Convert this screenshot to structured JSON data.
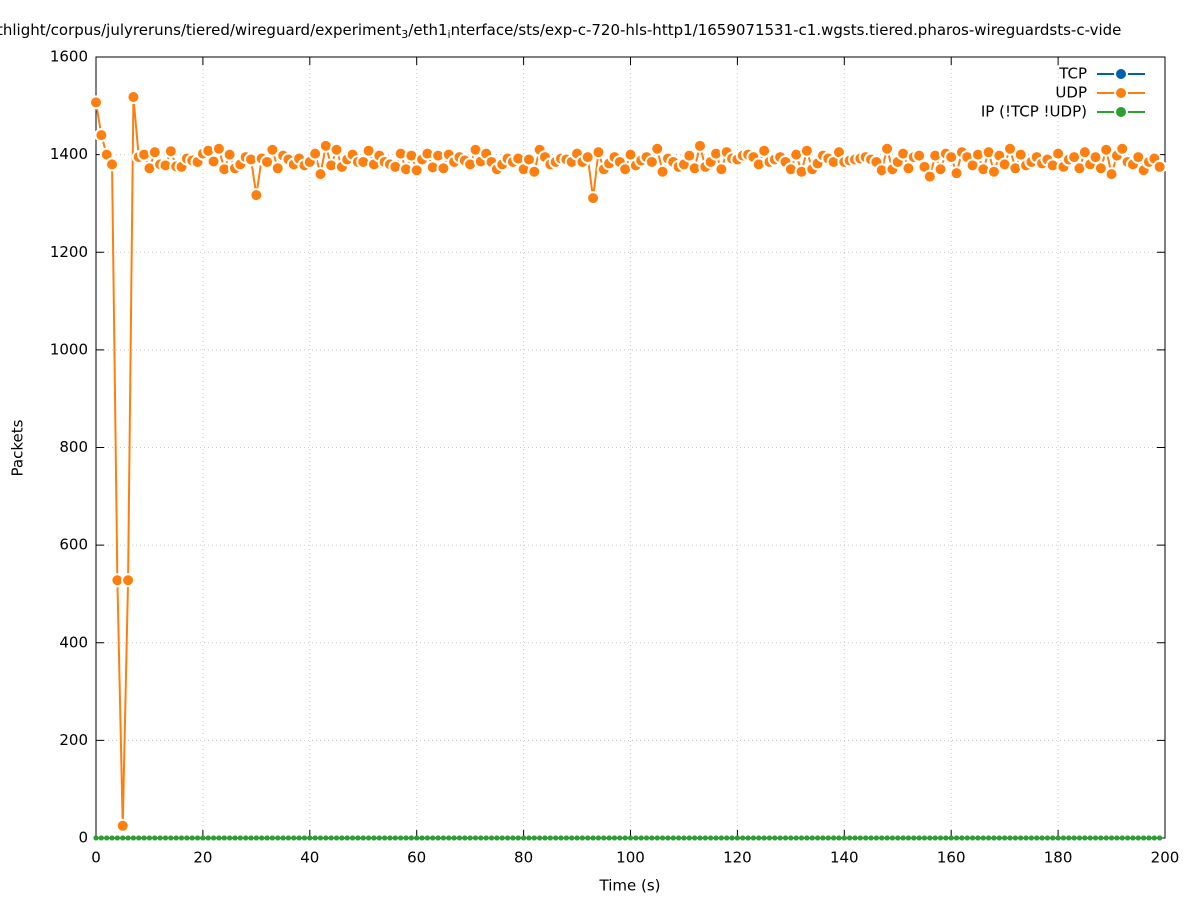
{
  "chart_data": {
    "type": "line",
    "title_parts": [
      "thlight/corpus/julyreruns/tiered/wireguard/experiment",
      "3",
      "/eth1",
      "i",
      "nterface/sts/exp-c-720-hls-http1/1659071531-c1.wgsts.tiered.pharos-wireguardsts-c-vide"
    ],
    "xlabel": "Time (s)",
    "ylabel": "Packets",
    "x": [
      0,
      1,
      2,
      3,
      4,
      5,
      6,
      7,
      8,
      9,
      10,
      11,
      12,
      13,
      14,
      15,
      16,
      17,
      18,
      19,
      20,
      21,
      22,
      23,
      24,
      25,
      26,
      27,
      28,
      29,
      30,
      31,
      32,
      33,
      34,
      35,
      36,
      37,
      38,
      39,
      40,
      41,
      42,
      43,
      44,
      45,
      46,
      47,
      48,
      49,
      50,
      51,
      52,
      53,
      54,
      55,
      56,
      57,
      58,
      59,
      60,
      61,
      62,
      63,
      64,
      65,
      66,
      67,
      68,
      69,
      70,
      71,
      72,
      73,
      74,
      75,
      76,
      77,
      78,
      79,
      80,
      81,
      82,
      83,
      84,
      85,
      86,
      87,
      88,
      89,
      90,
      91,
      92,
      93,
      94,
      95,
      96,
      97,
      98,
      99,
      100,
      101,
      102,
      103,
      104,
      105,
      106,
      107,
      108,
      109,
      110,
      111,
      112,
      113,
      114,
      115,
      116,
      117,
      118,
      119,
      120,
      121,
      122,
      123,
      124,
      125,
      126,
      127,
      128,
      129,
      130,
      131,
      132,
      133,
      134,
      135,
      136,
      137,
      138,
      139,
      140,
      141,
      142,
      143,
      144,
      145,
      146,
      147,
      148,
      149,
      150,
      151,
      152,
      153,
      154,
      155,
      156,
      157,
      158,
      159,
      160,
      161,
      162,
      163,
      164,
      165,
      166,
      167,
      168,
      169,
      170,
      171,
      172,
      173,
      174,
      175,
      176,
      177,
      178,
      179,
      180,
      181,
      182,
      183,
      184,
      185,
      186,
      187,
      188,
      189,
      190,
      191,
      192,
      193,
      194,
      195,
      196,
      197,
      198,
      199
    ],
    "series": [
      {
        "name": "TCP",
        "color": "#0060ad",
        "values": [
          0,
          0,
          0,
          0,
          0,
          0,
          0,
          0,
          0,
          0,
          0,
          0,
          0,
          0,
          0,
          0,
          0,
          0,
          0,
          0,
          0,
          0,
          0,
          0,
          0,
          0,
          0,
          0,
          0,
          0,
          0,
          0,
          0,
          0,
          0,
          0,
          0,
          0,
          0,
          0,
          0,
          0,
          0,
          0,
          0,
          0,
          0,
          0,
          0,
          0,
          0,
          0,
          0,
          0,
          0,
          0,
          0,
          0,
          0,
          0,
          0,
          0,
          0,
          0,
          0,
          0,
          0,
          0,
          0,
          0,
          0,
          0,
          0,
          0,
          0,
          0,
          0,
          0,
          0,
          0,
          0,
          0,
          0,
          0,
          0,
          0,
          0,
          0,
          0,
          0,
          0,
          0,
          0,
          0,
          0,
          0,
          0,
          0,
          0,
          0,
          0,
          0,
          0,
          0,
          0,
          0,
          0,
          0,
          0,
          0,
          0,
          0,
          0,
          0,
          0,
          0,
          0,
          0,
          0,
          0,
          0,
          0,
          0,
          0,
          0,
          0,
          0,
          0,
          0,
          0,
          0,
          0,
          0,
          0,
          0,
          0,
          0,
          0,
          0,
          0,
          0,
          0,
          0,
          0,
          0,
          0,
          0,
          0,
          0,
          0,
          0,
          0,
          0,
          0,
          0,
          0,
          0,
          0,
          0,
          0,
          0,
          0,
          0,
          0,
          0,
          0,
          0,
          0,
          0,
          0,
          0,
          0,
          0,
          0,
          0,
          0,
          0,
          0,
          0,
          0,
          0,
          0,
          0,
          0,
          0,
          0,
          0,
          0,
          0,
          0,
          0,
          0,
          0,
          0,
          0,
          0,
          0,
          0,
          0,
          0
        ]
      },
      {
        "name": "UDP",
        "color": "#ff7f0e",
        "values": [
          1507,
          1440,
          1400,
          1380,
          528,
          25,
          528,
          1518,
          1395,
          1400,
          1372,
          1405,
          1380,
          1378,
          1407,
          1376,
          1375,
          1392,
          1388,
          1385,
          1402,
          1408,
          1386,
          1412,
          1370,
          1400,
          1372,
          1380,
          1395,
          1390,
          1317,
          1392,
          1385,
          1410,
          1372,
          1398,
          1390,
          1380,
          1392,
          1378,
          1385,
          1402,
          1360,
          1418,
          1378,
          1410,
          1375,
          1390,
          1400,
          1385,
          1385,
          1408,
          1380,
          1398,
          1385,
          1380,
          1375,
          1402,
          1370,
          1398,
          1368,
          1390,
          1402,
          1374,
          1398,
          1372,
          1400,
          1385,
          1395,
          1388,
          1380,
          1410,
          1386,
          1402,
          1385,
          1370,
          1380,
          1392,
          1385,
          1392,
          1370,
          1390,
          1365,
          1410,
          1395,
          1380,
          1385,
          1392,
          1390,
          1385,
          1402,
          1385,
          1395,
          1311,
          1405,
          1370,
          1382,
          1395,
          1385,
          1370,
          1400,
          1378,
          1388,
          1395,
          1385,
          1412,
          1365,
          1392,
          1385,
          1375,
          1380,
          1398,
          1372,
          1418,
          1375,
          1385,
          1402,
          1370,
          1405,
          1392,
          1390,
          1398,
          1400,
          1395,
          1380,
          1408,
          1385,
          1390,
          1395,
          1385,
          1370,
          1400,
          1365,
          1408,
          1370,
          1382,
          1398,
          1392,
          1385,
          1405,
          1385,
          1388,
          1390,
          1392,
          1395,
          1390,
          1385,
          1368,
          1412,
          1370,
          1385,
          1402,
          1372,
          1395,
          1398,
          1375,
          1355,
          1398,
          1370,
          1402,
          1395,
          1362,
          1405,
          1395,
          1378,
          1400,
          1370,
          1405,
          1365,
          1398,
          1380,
          1412,
          1372,
          1400,
          1378,
          1385,
          1395,
          1382,
          1390,
          1378,
          1402,
          1375,
          1390,
          1395,
          1372,
          1405,
          1380,
          1395,
          1372,
          1410,
          1360,
          1398,
          1412,
          1385,
          1380,
          1395,
          1368,
          1385,
          1392,
          1375
        ]
      },
      {
        "name": "IP (!TCP  !UDP)",
        "color": "#2ca02c",
        "values": [
          0,
          0,
          0,
          0,
          0,
          0,
          0,
          0,
          0,
          0,
          0,
          0,
          0,
          0,
          0,
          0,
          0,
          0,
          0,
          0,
          0,
          0,
          0,
          0,
          0,
          0,
          0,
          0,
          0,
          0,
          0,
          0,
          0,
          0,
          0,
          0,
          0,
          0,
          0,
          0,
          0,
          0,
          0,
          0,
          0,
          0,
          0,
          0,
          0,
          0,
          0,
          0,
          0,
          0,
          0,
          0,
          0,
          0,
          0,
          0,
          0,
          0,
          0,
          0,
          0,
          0,
          0,
          0,
          0,
          0,
          0,
          0,
          0,
          0,
          0,
          0,
          0,
          0,
          0,
          0,
          0,
          0,
          0,
          0,
          0,
          0,
          0,
          0,
          0,
          0,
          0,
          0,
          0,
          0,
          0,
          0,
          0,
          0,
          0,
          0,
          0,
          0,
          0,
          0,
          0,
          0,
          0,
          0,
          0,
          0,
          0,
          0,
          0,
          0,
          0,
          0,
          0,
          0,
          0,
          0,
          0,
          0,
          0,
          0,
          0,
          0,
          0,
          0,
          0,
          0,
          0,
          0,
          0,
          0,
          0,
          0,
          0,
          0,
          0,
          0,
          0,
          0,
          0,
          0,
          0,
          0,
          0,
          0,
          0,
          0,
          0,
          0,
          0,
          0,
          0,
          0,
          0,
          0,
          0,
          0,
          0,
          0,
          0,
          0,
          0,
          0,
          0,
          0,
          0,
          0,
          0,
          0,
          0,
          0,
          0,
          0,
          0,
          0,
          0,
          0,
          0,
          0,
          0,
          0,
          0,
          0,
          0,
          0,
          0,
          0,
          0,
          0,
          0,
          0,
          0,
          0,
          0,
          0,
          0,
          0
        ]
      }
    ],
    "xlim": [
      0,
      200
    ],
    "xticks": [
      0,
      20,
      40,
      60,
      80,
      100,
      120,
      140,
      160,
      180,
      200
    ],
    "ylim": [
      0,
      1600
    ],
    "yticks": [
      0,
      200,
      400,
      600,
      800,
      1000,
      1200,
      1400,
      1600
    ],
    "grid": true,
    "legend": "top-right"
  }
}
